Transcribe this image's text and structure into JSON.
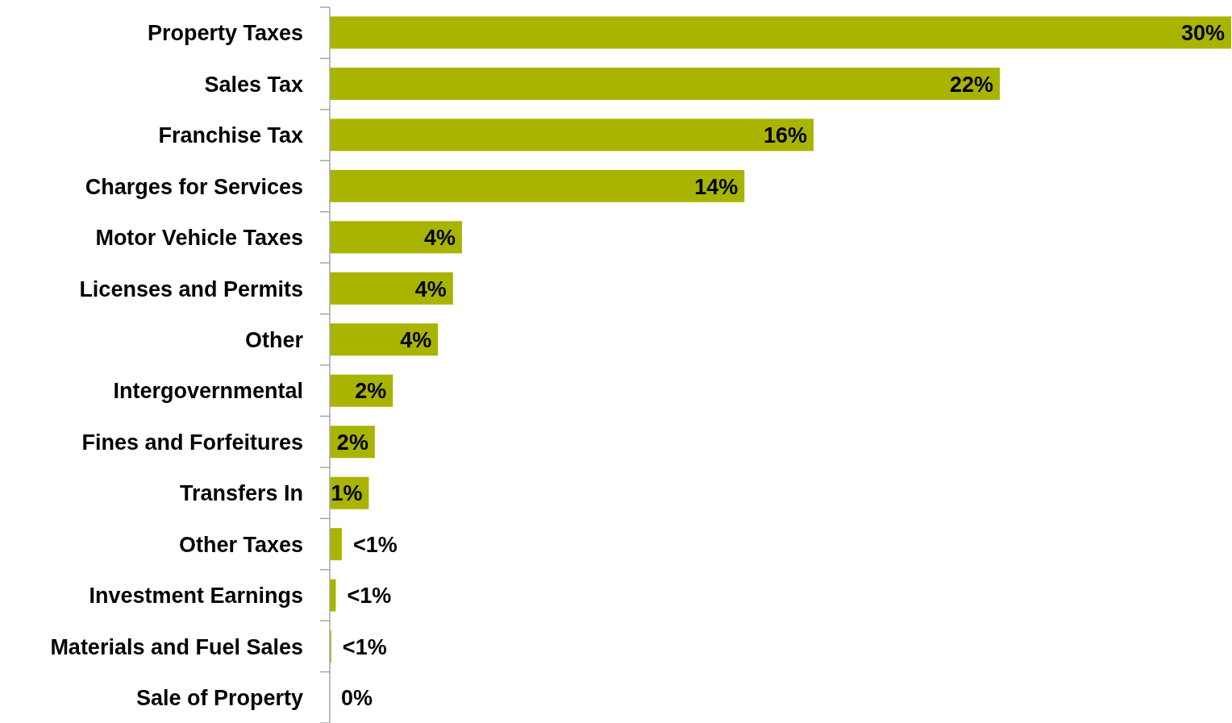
{
  "chart_data": {
    "type": "bar",
    "orientation": "horizontal",
    "categories": [
      "Property Taxes",
      "Sales Tax",
      "Franchise Tax",
      "Charges for Services",
      "Motor Vehicle Taxes",
      "Licenses and Permits",
      "Other",
      "Intergovernmental",
      "Fines and Forfeitures",
      "Transfers In",
      "Other Taxes",
      "Investment Earnings",
      "Materials and Fuel Sales",
      "Sale of Property"
    ],
    "values": [
      30,
      22.3,
      16.1,
      13.8,
      4.4,
      4.1,
      3.6,
      2.1,
      1.5,
      1.3,
      0.4,
      0.2,
      0.05,
      0
    ],
    "value_labels": [
      "30%",
      "22%",
      "16%",
      "14%",
      "4%",
      "4%",
      "4%",
      "2%",
      "2%",
      "1%",
      "<1%",
      "<1%",
      "<1%",
      "0%"
    ],
    "color": "#a9b400"
  }
}
